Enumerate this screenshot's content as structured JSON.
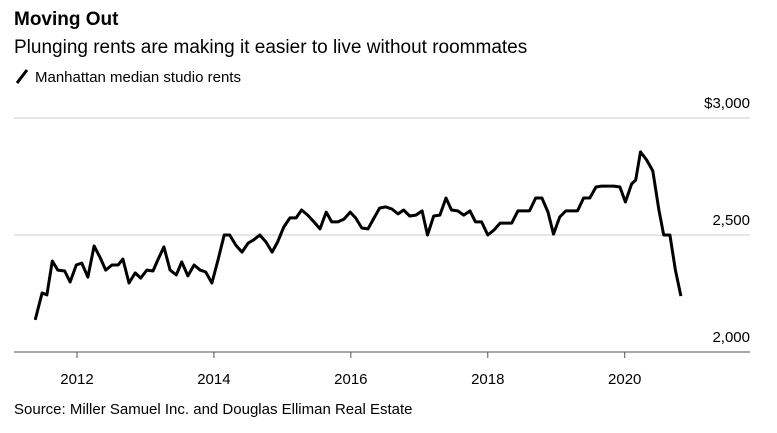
{
  "chart_data": {
    "type": "line",
    "title": "Moving Out",
    "subtitle": "Plunging rents are making it easier to live without roommates",
    "source": "Source: Miller Samuel Inc. and Douglas Elliman Real Estate",
    "x": [
      2011.39,
      2011.49,
      2011.56,
      2011.64,
      2011.72,
      2011.82,
      2011.9,
      2011.99,
      2012.07,
      2012.16,
      2012.25,
      2012.34,
      2012.42,
      2012.51,
      2012.6,
      2012.67,
      2012.76,
      2012.85,
      2012.93,
      2013.02,
      2013.11,
      2013.18,
      2013.27,
      2013.36,
      2013.45,
      2013.53,
      2013.62,
      2013.71,
      2013.8,
      2013.88,
      2013.97,
      2014.06,
      2014.15,
      2014.23,
      2014.32,
      2014.41,
      2014.5,
      2014.58,
      2014.67,
      2014.76,
      2014.85,
      2014.93,
      2015.02,
      2015.11,
      2015.2,
      2015.28,
      2015.37,
      2015.46,
      2015.55,
      2015.64,
      2015.72,
      2015.81,
      2015.9,
      2015.99,
      2016.07,
      2016.16,
      2016.25,
      2016.34,
      2016.42,
      2016.51,
      2016.6,
      2016.69,
      2016.77,
      2016.86,
      2016.95,
      2017.04,
      2017.12,
      2017.21,
      2017.3,
      2017.39,
      2017.47,
      2017.56,
      2017.65,
      2017.74,
      2017.82,
      2017.91,
      2018.0,
      2018.09,
      2018.18,
      2018.26,
      2018.35,
      2018.44,
      2018.53,
      2018.61,
      2018.7,
      2018.79,
      2018.88,
      2018.96,
      2019.05,
      2019.14,
      2019.23,
      2019.31,
      2019.4,
      2019.49,
      2019.58,
      2019.66,
      2019.75,
      2019.84,
      2019.93,
      2020.01,
      2020.1,
      2020.16,
      2020.23,
      2020.32,
      2020.41,
      2020.5,
      2020.57,
      2020.66,
      2020.74,
      2020.82
    ],
    "series": [
      {
        "name": "Manhattan median studio rents",
        "color": "#000000",
        "values": [
          2137,
          2252,
          2244,
          2389,
          2350,
          2346,
          2299,
          2372,
          2380,
          2320,
          2453,
          2402,
          2350,
          2372,
          2372,
          2397,
          2295,
          2338,
          2316,
          2350,
          2346,
          2393,
          2449,
          2350,
          2329,
          2385,
          2325,
          2372,
          2350,
          2342,
          2295,
          2393,
          2500,
          2500,
          2457,
          2427,
          2466,
          2479,
          2500,
          2470,
          2427,
          2470,
          2534,
          2573,
          2573,
          2607,
          2585,
          2556,
          2526,
          2598,
          2556,
          2556,
          2568,
          2598,
          2573,
          2530,
          2526,
          2573,
          2615,
          2620,
          2611,
          2590,
          2607,
          2581,
          2585,
          2603,
          2500,
          2581,
          2585,
          2658,
          2607,
          2603,
          2585,
          2603,
          2556,
          2556,
          2500,
          2521,
          2551,
          2551,
          2551,
          2603,
          2603,
          2603,
          2658,
          2658,
          2598,
          2504,
          2577,
          2603,
          2603,
          2603,
          2658,
          2658,
          2705,
          2709,
          2709,
          2709,
          2705,
          2641,
          2718,
          2735,
          2855,
          2821,
          2774,
          2607,
          2500,
          2500,
          2350,
          2239
        ]
      }
    ],
    "xlim": [
      2011.08,
      2021.83
    ],
    "xticks": [
      2012,
      2014,
      2016,
      2018,
      2020
    ],
    "ylim": [
      2000,
      3000
    ],
    "yticks": [
      {
        "value": 2000,
        "label": "2,000"
      },
      {
        "value": 2500,
        "label": "2,500"
      },
      {
        "value": 3000,
        "label": "$3,000"
      }
    ],
    "grid": true
  }
}
